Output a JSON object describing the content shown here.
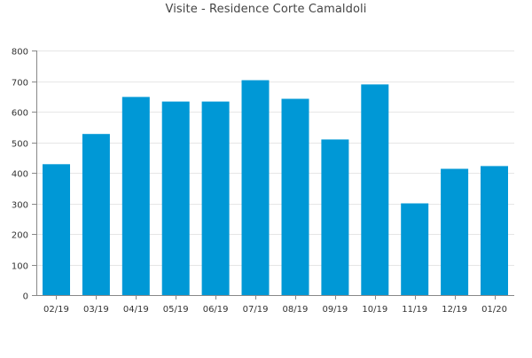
{
  "chart_data": {
    "type": "bar",
    "title": "Visite - Residence Corte Camaldoli",
    "xlabel": "",
    "ylabel": "",
    "categories": [
      "02/19",
      "03/19",
      "04/19",
      "05/19",
      "06/19",
      "07/19",
      "08/19",
      "09/19",
      "10/19",
      "11/19",
      "12/19",
      "01/20"
    ],
    "values": [
      428,
      527,
      648,
      633,
      633,
      703,
      642,
      509,
      689,
      300,
      413,
      422
    ],
    "ylim": [
      0,
      800
    ],
    "yticks": [
      0,
      100,
      200,
      300,
      400,
      500,
      600,
      700,
      800
    ],
    "grid": true,
    "legend": "none",
    "colors": {
      "bar": "#0098d6",
      "grid": "#e6e6e6",
      "axis": "#888888",
      "text": "#333333"
    }
  }
}
